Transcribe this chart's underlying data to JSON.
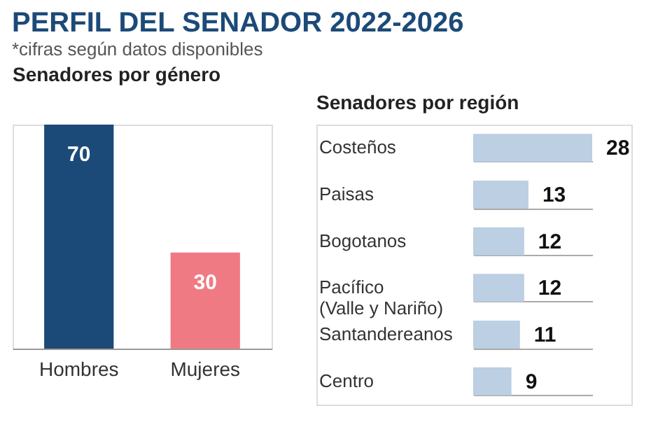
{
  "chart_data": [
    {
      "type": "bar",
      "title": "PERFIL DEL SENADOR 2022-2026",
      "subtitle": "*cifras según datos disponibles",
      "annotations": [
        "Senadores por género"
      ],
      "categories": [
        "Hombres",
        "Mujeres"
      ],
      "values": [
        70,
        30
      ],
      "colors": [
        "#1c4a78",
        "#f07a84"
      ],
      "data_labels": true
    },
    {
      "type": "bar",
      "orientation": "horizontal",
      "title": "Senadores por región",
      "categories": [
        "Costeños",
        "Paisas",
        "Bogotanos",
        "Pacífico\n(Valle y Nariño)",
        "Santandereanos",
        "Centro"
      ],
      "values": [
        28,
        13,
        12,
        12,
        11,
        9
      ],
      "color": "#bccfe3",
      "data_labels": true,
      "grid": "y"
    }
  ]
}
